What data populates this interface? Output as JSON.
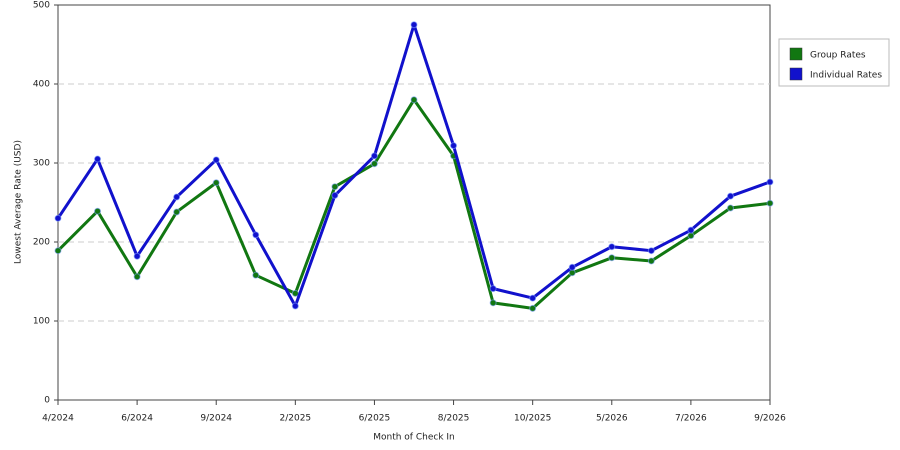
{
  "chart_data": {
    "type": "line",
    "x_label": "Month of Check In",
    "y_label": "Lowest Average Rate (USD)",
    "categories": [
      "4/2024",
      null,
      "6/2024",
      null,
      "9/2024",
      null,
      "2/2025",
      null,
      "6/2025",
      null,
      "8/2025",
      null,
      "10/2025",
      null,
      "5/2026",
      null,
      "7/2026",
      null,
      "9/2026"
    ],
    "series": [
      {
        "name": "Group Rates",
        "color": "#117711",
        "values": [
          189,
          239,
          156,
          238,
          275,
          158,
          135,
          270,
          299,
          380,
          309,
          123,
          116,
          161,
          180,
          176,
          208,
          243,
          249
        ]
      },
      {
        "name": "Individual Rates",
        "color": "#1111cc",
        "values": [
          230,
          305,
          182,
          257,
          304,
          209,
          119,
          259,
          309,
          475,
          322,
          141,
          129,
          168,
          194,
          189,
          215,
          258,
          276
        ]
      }
    ],
    "ylim": [
      0,
      500
    ],
    "yticks": [
      0,
      100,
      200,
      300,
      400,
      500
    ],
    "grid": true,
    "legend": "right"
  }
}
